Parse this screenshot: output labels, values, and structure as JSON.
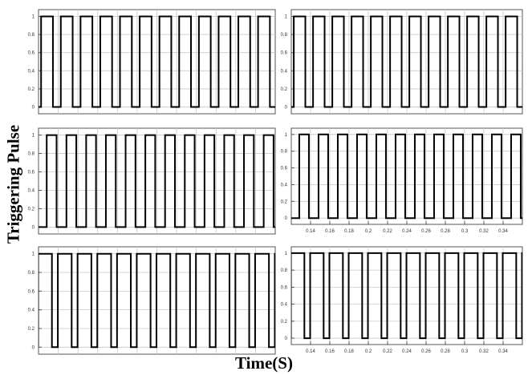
{
  "figure": {
    "ylabel": "Triggering Pulse",
    "xlabel": "Time(S)"
  },
  "chart_data": [
    {
      "type": "line",
      "panel": "top-left",
      "title": "",
      "xlabel": "",
      "ylabel": "",
      "ylim": [
        0,
        1
      ],
      "yticks": [
        "0",
        "0.2",
        "0.4",
        "0.6",
        "0.8",
        "1"
      ],
      "xlim": [
        0.12,
        0.36
      ],
      "xticks": [],
      "grid": true,
      "period": 0.02,
      "duty": 0.6,
      "first_rise": 0.1226,
      "series": [
        {
          "values": "periodic square pulse 0 to 1"
        }
      ]
    },
    {
      "type": "line",
      "panel": "top-right",
      "title": "",
      "xlabel": "",
      "ylabel": "",
      "ylim": [
        0,
        1
      ],
      "yticks": [
        "0",
        "0.2",
        "0.4",
        "0.6",
        "0.8",
        "1"
      ],
      "xlim": [
        0.12,
        0.36
      ],
      "xticks": [],
      "grid": true,
      "period": 0.02,
      "duty": 0.6,
      "first_rise": 0.1226,
      "series": [
        {
          "values": "periodic square pulse 0 to 1"
        }
      ]
    },
    {
      "type": "line",
      "panel": "middle-left",
      "title": "",
      "xlabel": "",
      "ylabel": "",
      "ylim": [
        0,
        1
      ],
      "yticks": [
        "0",
        "0.2",
        "0.4",
        "0.6",
        "0.8",
        "1"
      ],
      "xlim": [
        0.12,
        0.36
      ],
      "xticks": [],
      "grid": true,
      "period": 0.02,
      "duty": 0.5,
      "first_rise": 0.1283,
      "series": [
        {
          "values": "periodic square pulse 0 to 1"
        }
      ]
    },
    {
      "type": "line",
      "panel": "middle-right",
      "title": "",
      "xlabel": "",
      "ylabel": "",
      "ylim": [
        0,
        1
      ],
      "yticks": [
        "0",
        "0.2",
        "0.4",
        "0.6",
        "0.8",
        "1"
      ],
      "xlim": [
        0.12,
        0.36
      ],
      "xticks": [
        "0.14",
        "0.16",
        "0.18",
        "0.2",
        "0.22",
        "0.24",
        "0.26",
        "0.28",
        "0.3",
        "0.32",
        "0.34"
      ],
      "grid": true,
      "period": 0.02,
      "duty": 0.5,
      "first_rise": 0.1283,
      "series": [
        {
          "values": "periodic square pulse 0 to 1"
        }
      ]
    },
    {
      "type": "line",
      "panel": "bottom-left",
      "title": "",
      "xlabel": "",
      "ylabel": "",
      "ylim": [
        0,
        1
      ],
      "yticks": [
        "0",
        "0.2",
        "0.4",
        "0.6",
        "0.8",
        "1"
      ],
      "xlim": [
        0.12,
        0.36
      ],
      "xticks": [],
      "grid": true,
      "period": 0.02,
      "duty": 0.7,
      "first_rise": 0.1196,
      "series": [
        {
          "values": "periodic square pulse 0 to 1"
        }
      ]
    },
    {
      "type": "line",
      "panel": "bottom-right",
      "title": "",
      "xlabel": "",
      "ylabel": "",
      "ylim": [
        0,
        1
      ],
      "yticks": [
        "0",
        "0.2",
        "0.4",
        "0.6",
        "0.8",
        "1"
      ],
      "xlim": [
        0.12,
        0.36
      ],
      "xticks": [
        "0.14",
        "0.16",
        "0.18",
        "0.2",
        "0.22",
        "0.24",
        "0.26",
        "0.28",
        "0.3",
        "0.32",
        "0.34"
      ],
      "grid": true,
      "period": 0.02,
      "duty": 0.7,
      "first_rise": 0.1196,
      "series": [
        {
          "values": "periodic square pulse 0 to 1"
        }
      ]
    }
  ]
}
